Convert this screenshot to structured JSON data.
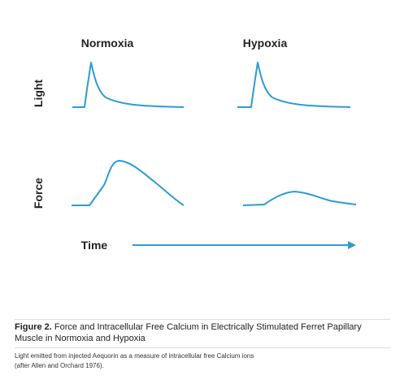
{
  "columns": [
    "Normoxia",
    "Hypoxia"
  ],
  "rows": [
    "Light",
    "Force"
  ],
  "x_axis": "Time",
  "caption": {
    "label": "Figure 2.",
    "text": "Force and Intracellular Free Calcium in Electrically Stimulated Ferret Papillary Muscle in Normoxia and Hypoxia"
  },
  "note": [
    "Light emitted from injected Aequorin as a measure of intracellular free Calcium ions",
    "(after Allen and Orchard 1976)."
  ]
}
